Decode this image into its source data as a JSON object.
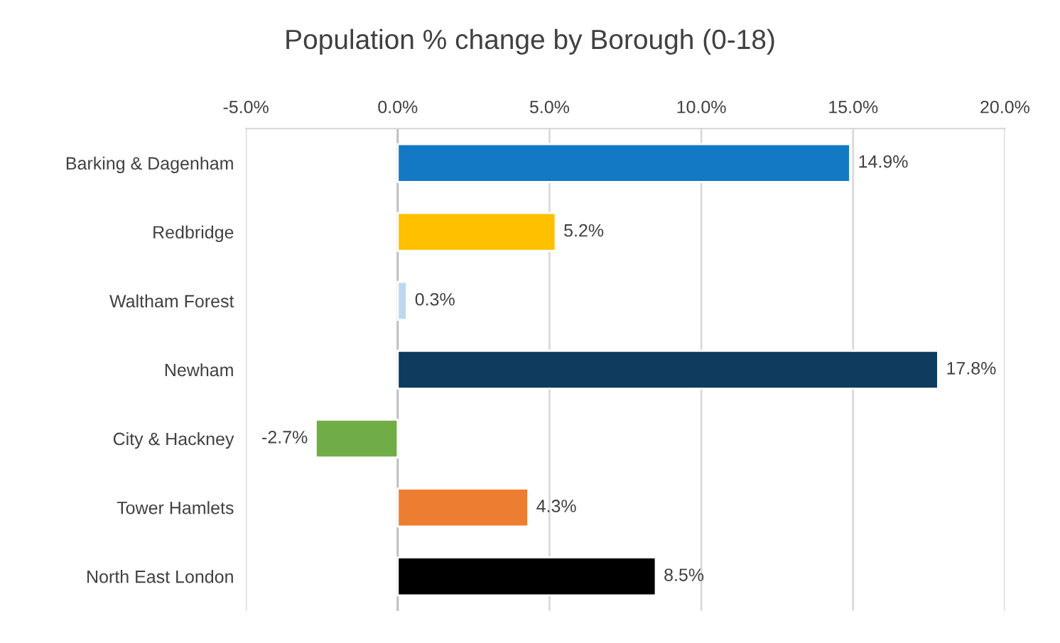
{
  "chart_data": {
    "type": "bar",
    "orientation": "horizontal",
    "title": "Population % change by Borough (0-18)",
    "categories": [
      "Barking & Dagenham",
      "Redbridge",
      "Waltham Forest",
      "Newham",
      "City & Hackney",
      "Tower Hamlets",
      "North East London"
    ],
    "values": [
      14.9,
      5.2,
      0.3,
      17.8,
      -2.7,
      4.3,
      8.5
    ],
    "colors": [
      "#1479c4",
      "#ffc000",
      "#bdd7ee",
      "#0e3b5e",
      "#70ad47",
      "#ed7d31",
      "#000000"
    ],
    "value_labels": [
      "14.9%",
      "5.2%",
      "0.3%",
      "17.8%",
      "-2.7%",
      "4.3%",
      "8.5%"
    ],
    "xlim": [
      -5,
      20
    ],
    "xticks": [
      {
        "value": -5,
        "label": "-5.0%"
      },
      {
        "value": 0,
        "label": "0.0%"
      },
      {
        "value": 5,
        "label": "5.0%"
      },
      {
        "value": 10,
        "label": "10.0%"
      },
      {
        "value": 15,
        "label": "15.0%"
      },
      {
        "value": 20,
        "label": "20.0%"
      }
    ],
    "grid": "x",
    "legend": false
  }
}
